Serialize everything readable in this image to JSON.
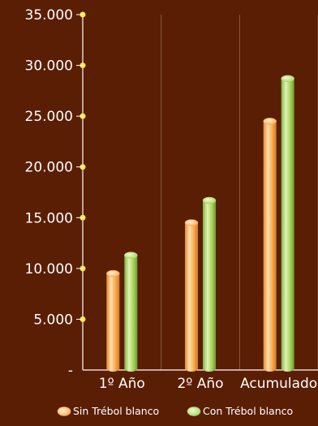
{
  "chart_data": {
    "type": "bar",
    "title": "",
    "xlabel": "",
    "ylabel": "",
    "categories": [
      "1º Año",
      "2º Año",
      "Acumulado"
    ],
    "series": [
      {
        "name": "Sin Trébol blanco",
        "values": [
          9500,
          14500,
          24500
        ]
      },
      {
        "name": "Con Trébol blanco",
        "values": [
          11300,
          16700,
          28700
        ]
      }
    ],
    "ylim": [
      0,
      35000
    ],
    "yticks": [
      {
        "value": 0,
        "label": "-"
      },
      {
        "value": 5000,
        "label": "5.000"
      },
      {
        "value": 10000,
        "label": "10.000"
      },
      {
        "value": 15000,
        "label": "15.000"
      },
      {
        "value": 20000,
        "label": "20.000"
      },
      {
        "value": 25000,
        "label": "25.000"
      },
      {
        "value": 30000,
        "label": "30.000"
      },
      {
        "value": 35000,
        "label": "35.000"
      }
    ],
    "grid": true,
    "legend_position": "bottom",
    "colors": {
      "background": "#5a1e04",
      "axis": "#ffffff",
      "grid": "#8a5a40",
      "tick_dot": "#f3ec4a",
      "sin_trebol": "#f7a84a",
      "con_trebol": "#a6d35a"
    }
  }
}
